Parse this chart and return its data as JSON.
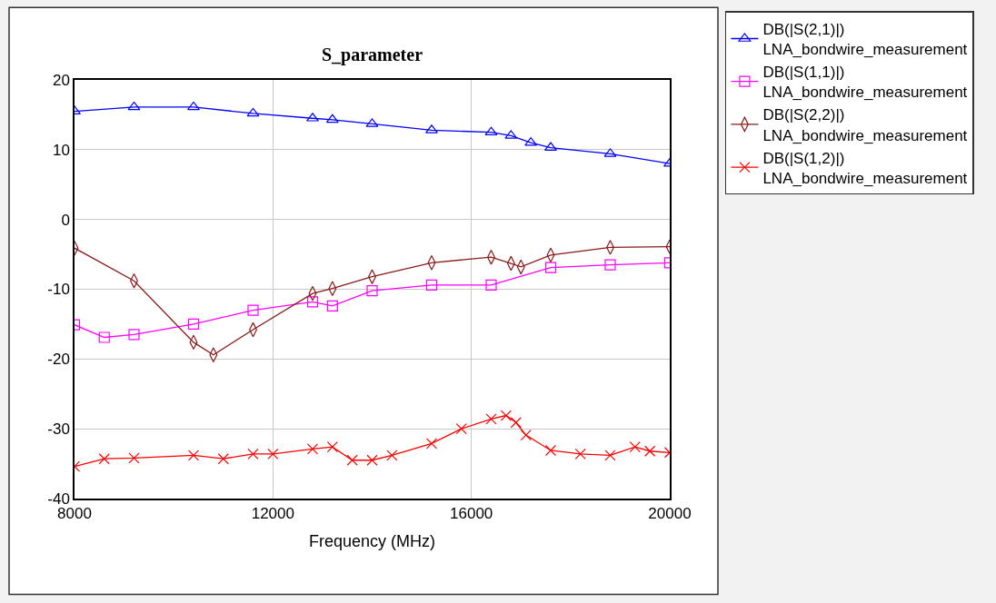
{
  "chart_data": {
    "type": "line",
    "title": "S_parameter",
    "xlabel": "Frequency (MHz)",
    "xlim": [
      8000,
      20000
    ],
    "xticks": [
      8000,
      12000,
      16000,
      20000
    ],
    "ylim": [
      -40,
      20
    ],
    "yticks": [
      -40,
      -30,
      -20,
      -10,
      0,
      10,
      20
    ],
    "grid": true,
    "legend": "top right",
    "line_style": "solid",
    "series": [
      {
        "name": "DB(|S(2,1)|)\nLNA_bondwire_measurement",
        "color": "#0000ff",
        "marker": "triangle",
        "x": [
          8000,
          9200,
          10400,
          11600,
          12800,
          13200,
          14000,
          15200,
          16400,
          16800,
          17200,
          17600,
          18800,
          20000
        ],
        "values": [
          15.5,
          16.1,
          16.1,
          15.2,
          14.5,
          14.3,
          13.7,
          12.8,
          12.5,
          12.0,
          11.0,
          10.3,
          9.4,
          8.0
        ]
      },
      {
        "name": "DB(|S(1,1)|)\nLNA_bondwire_measurement",
        "color": "#ff00ff",
        "marker": "square",
        "x": [
          8000,
          8600,
          9200,
          10400,
          11600,
          12800,
          13200,
          14000,
          15200,
          16400,
          17600,
          18800,
          20000
        ],
        "values": [
          -15.1,
          -16.9,
          -16.5,
          -15.0,
          -13.0,
          -11.8,
          -12.4,
          -10.2,
          -9.4,
          -9.4,
          -6.9,
          -6.5,
          -6.2
        ]
      },
      {
        "name": "DB(|S(2,2)|)\nLNA_bondwire_measurement",
        "color": "#8b1a1a",
        "marker": "diamond",
        "x": [
          8000,
          9200,
          10400,
          10800,
          11600,
          12800,
          13200,
          14000,
          15200,
          16400,
          16800,
          17000,
          17600,
          18800,
          20000
        ],
        "values": [
          -4.1,
          -8.8,
          -17.6,
          -19.4,
          -15.8,
          -10.6,
          -9.9,
          -8.2,
          -6.2,
          -5.4,
          -6.3,
          -6.8,
          -5.1,
          -4.0,
          -3.9
        ]
      },
      {
        "name": "DB(|S(1,2)|)\nLNA_bondwire_measurement",
        "color": "#ff0000",
        "marker": "cross",
        "x": [
          8000,
          8600,
          9200,
          10400,
          11000,
          11600,
          12000,
          12800,
          13200,
          13600,
          14000,
          14400,
          15200,
          15800,
          16400,
          16700,
          16900,
          17100,
          17600,
          18200,
          18800,
          19300,
          19600,
          20000
        ],
        "values": [
          -35.4,
          -34.3,
          -34.2,
          -33.8,
          -34.3,
          -33.6,
          -33.6,
          -32.9,
          -32.6,
          -34.5,
          -34.5,
          -33.8,
          -32.1,
          -30.0,
          -28.6,
          -28.1,
          -29.1,
          -30.9,
          -33.1,
          -33.6,
          -33.8,
          -32.6,
          -33.2,
          -33.4
        ]
      }
    ]
  }
}
